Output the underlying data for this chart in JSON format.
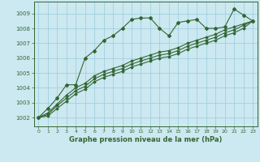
{
  "title": "Graphe pression niveau de la mer (hPa)",
  "background_color": "#cce8f0",
  "grid_color": "#99ccdd",
  "line_color": "#336633",
  "x_ticks": [
    0,
    1,
    2,
    3,
    4,
    5,
    6,
    7,
    8,
    9,
    10,
    11,
    12,
    13,
    14,
    15,
    16,
    17,
    18,
    19,
    20,
    21,
    22,
    23
  ],
  "y_ticks": [
    1002,
    1003,
    1004,
    1005,
    1006,
    1007,
    1008,
    1009
  ],
  "ylim": [
    1001.4,
    1009.8
  ],
  "xlim": [
    -0.5,
    23.5
  ],
  "series1": [
    1002.0,
    1002.6,
    1003.3,
    1004.2,
    1004.2,
    1006.0,
    1006.5,
    1007.2,
    1007.5,
    1008.0,
    1008.6,
    1008.7,
    1008.7,
    1008.0,
    1007.5,
    1008.4,
    1008.5,
    1008.6,
    1008.0,
    1008.0,
    1008.1,
    1009.3,
    1008.9,
    1008.5
  ],
  "series2": [
    1002.0,
    1002.3,
    1002.9,
    1003.5,
    1004.0,
    1004.3,
    1004.8,
    1005.1,
    1005.3,
    1005.5,
    1005.8,
    1006.0,
    1006.2,
    1006.4,
    1006.5,
    1006.7,
    1007.0,
    1007.2,
    1007.4,
    1007.6,
    1007.9,
    1008.1,
    1008.3,
    1008.5
  ],
  "series3": [
    1002.0,
    1002.2,
    1002.8,
    1003.3,
    1003.8,
    1004.1,
    1004.6,
    1004.9,
    1005.1,
    1005.3,
    1005.6,
    1005.8,
    1006.0,
    1006.2,
    1006.3,
    1006.5,
    1006.8,
    1007.0,
    1007.2,
    1007.4,
    1007.7,
    1007.9,
    1008.2,
    1008.5
  ],
  "series4": [
    1002.0,
    1002.1,
    1002.6,
    1003.1,
    1003.6,
    1003.9,
    1004.4,
    1004.7,
    1004.9,
    1005.1,
    1005.4,
    1005.6,
    1005.8,
    1006.0,
    1006.1,
    1006.3,
    1006.6,
    1006.8,
    1007.0,
    1007.2,
    1007.5,
    1007.7,
    1008.0,
    1008.5
  ]
}
